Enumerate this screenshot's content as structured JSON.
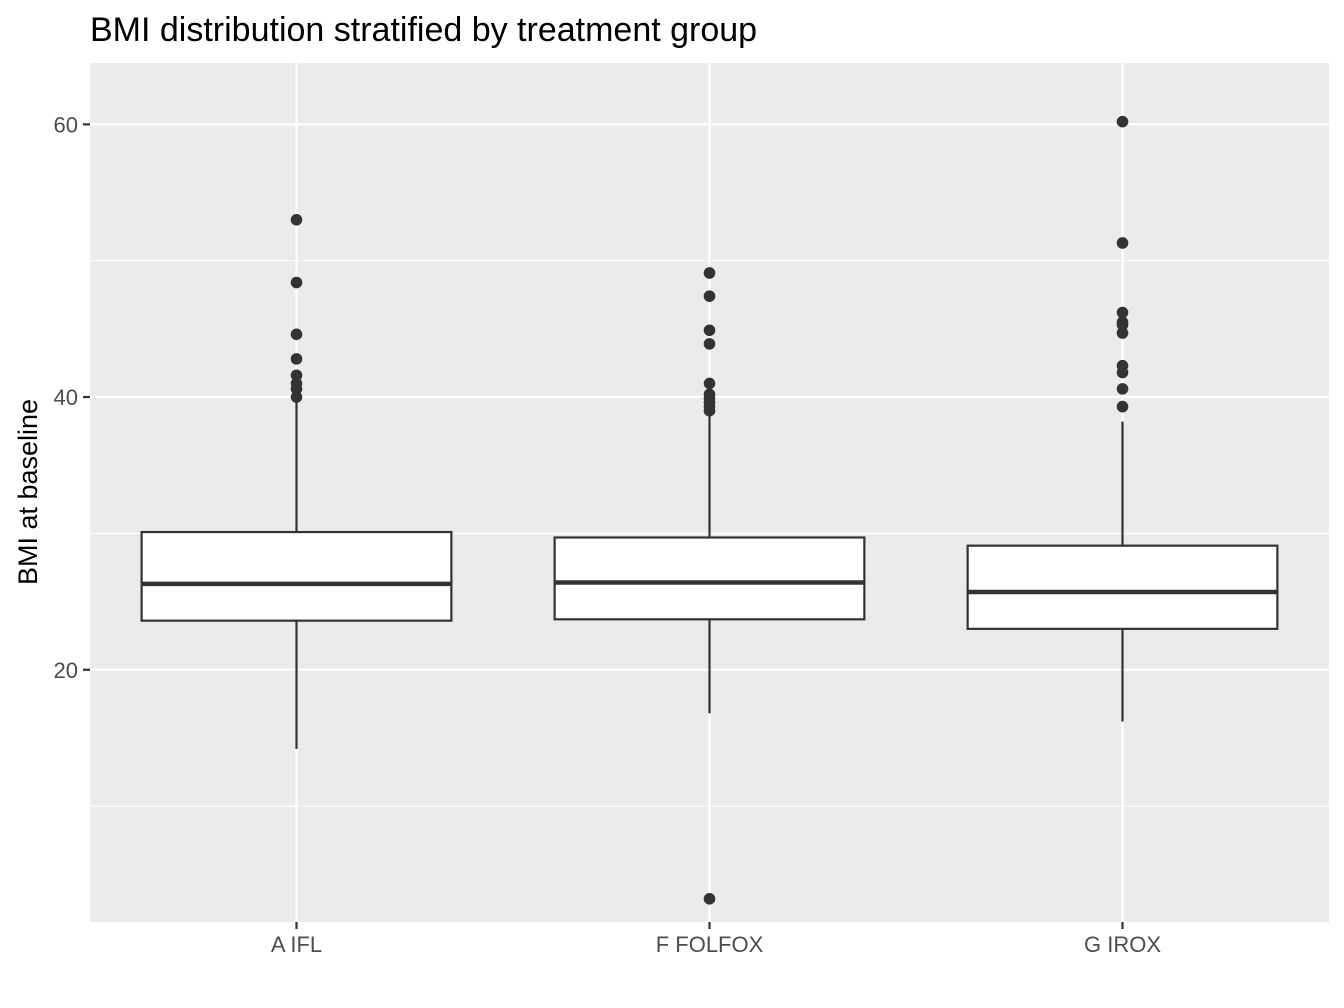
{
  "chart_data": {
    "type": "box",
    "title": "BMI distribution stratified by treatment group",
    "xlabel": "",
    "ylabel": "BMI at baseline",
    "ylim": [
      1.5,
      64.5
    ],
    "y_ticks": [
      20,
      40,
      60
    ],
    "y_minor_ticks": [
      10,
      30,
      50
    ],
    "grid": true,
    "legend": "none",
    "colors": {
      "panel_background": "#ebebeb",
      "grid": "#ffffff",
      "box_fill": "#ffffff",
      "box_line": "#333333",
      "outlier": "#333333"
    },
    "categories": [
      "A IFL",
      "F FOLFOX",
      "G IROX"
    ],
    "boxes": [
      {
        "category": "A IFL",
        "whisker_low": 14.2,
        "q1": 23.6,
        "median": 26.3,
        "q3": 30.1,
        "whisker_high": 39.8,
        "outliers": [
          40.0,
          40.6,
          41.0,
          41.6,
          42.8,
          44.6,
          48.4,
          53.0
        ]
      },
      {
        "category": "F FOLFOX",
        "whisker_low": 16.8,
        "q1": 23.7,
        "median": 26.4,
        "q3": 29.7,
        "whisker_high": 38.7,
        "outliers": [
          3.2,
          39.0,
          39.3,
          39.6,
          39.9,
          40.2,
          41.0,
          43.9,
          44.9,
          47.4,
          49.1
        ]
      },
      {
        "category": "G IROX",
        "whisker_low": 16.2,
        "q1": 23.0,
        "median": 25.7,
        "q3": 29.1,
        "whisker_high": 38.2,
        "outliers": [
          39.3,
          40.6,
          41.8,
          42.3,
          44.7,
          45.3,
          45.5,
          46.2,
          51.3,
          60.2
        ]
      }
    ]
  }
}
